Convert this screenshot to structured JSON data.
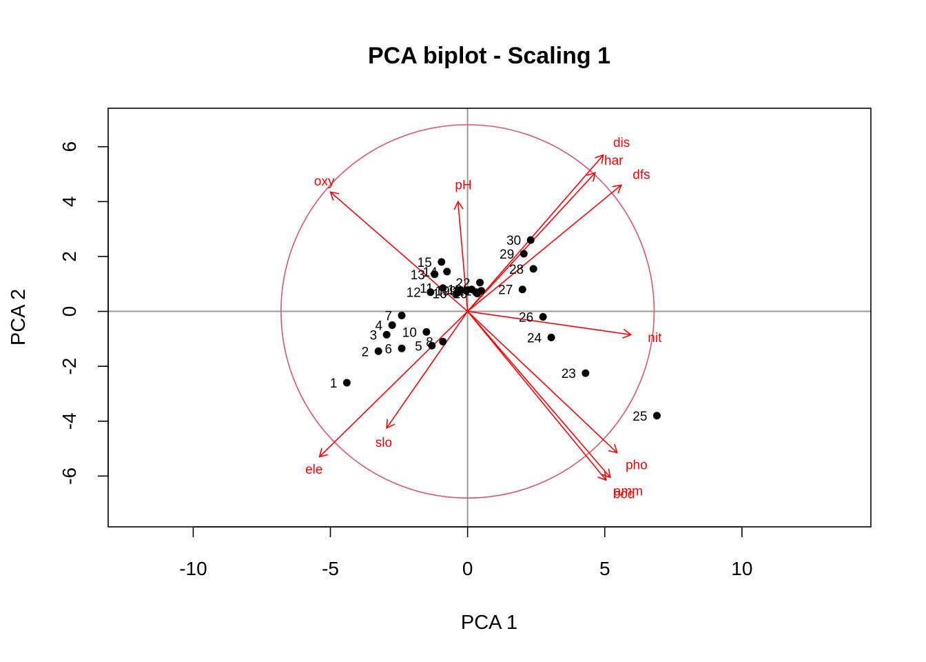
{
  "chart_data": {
    "type": "scatter",
    "title": "PCA biplot - Scaling 1",
    "xlabel": "PCA  1",
    "ylabel": "PCA  2",
    "xlim": [
      -13.1,
      14.7
    ],
    "ylim": [
      -7.85,
      7.4
    ],
    "xticks": [
      -10,
      -5,
      0,
      5,
      10
    ],
    "xtick_labels": [
      "-10",
      "-5",
      "0",
      "5",
      "10"
    ],
    "yticks": [
      -6,
      -4,
      -2,
      0,
      2,
      4,
      6
    ],
    "ytick_labels": [
      "-6",
      "-4",
      "-2",
      "0",
      "2",
      "4",
      "6"
    ],
    "grid": false,
    "reference_lines": [
      0,
      0
    ],
    "circle_radius": 6.8,
    "colors": {
      "points": "#000000",
      "arrows": "#ff0000",
      "circle": "#df536b",
      "axes": "#000000",
      "reference": "#999999"
    },
    "sites": [
      {
        "label": "1",
        "x": -4.4,
        "y": -2.6
      },
      {
        "label": "2",
        "x": -3.25,
        "y": -1.45
      },
      {
        "label": "3",
        "x": -2.95,
        "y": -0.85
      },
      {
        "label": "4",
        "x": -2.75,
        "y": -0.5
      },
      {
        "label": "5",
        "x": -1.3,
        "y": -1.25
      },
      {
        "label": "6",
        "x": -2.4,
        "y": -1.35
      },
      {
        "label": "7",
        "x": -2.4,
        "y": -0.15
      },
      {
        "label": "8",
        "x": -0.9,
        "y": -1.1
      },
      {
        "label": "9",
        "x": -0.05,
        "y": 0.75
      },
      {
        "label": "10",
        "x": -1.5,
        "y": -0.75
      },
      {
        "label": "11",
        "x": -0.9,
        "y": 0.85
      },
      {
        "label": "12",
        "x": -1.35,
        "y": 0.7
      },
      {
        "label": "13",
        "x": -1.2,
        "y": 1.35
      },
      {
        "label": "14",
        "x": -0.75,
        "y": 1.45
      },
      {
        "label": "15",
        "x": -0.95,
        "y": 1.8
      },
      {
        "label": "16",
        "x": -0.4,
        "y": 0.65
      },
      {
        "label": "17",
        "x": 0.3,
        "y": 0.7
      },
      {
        "label": "18",
        "x": 0.15,
        "y": 0.8
      },
      {
        "label": "19",
        "x": -0.3,
        "y": 0.75
      },
      {
        "label": "20",
        "x": 0.35,
        "y": 0.65
      },
      {
        "label": "21",
        "x": 0.5,
        "y": 0.75
      },
      {
        "label": "22",
        "x": 0.45,
        "y": 1.05
      },
      {
        "label": "23",
        "x": 4.3,
        "y": -2.25
      },
      {
        "label": "24",
        "x": 3.05,
        "y": -0.95
      },
      {
        "label": "25",
        "x": 6.9,
        "y": -3.8
      },
      {
        "label": "26",
        "x": 2.75,
        "y": -0.2
      },
      {
        "label": "27",
        "x": 2.0,
        "y": 0.8
      },
      {
        "label": "28",
        "x": 2.4,
        "y": 1.55
      },
      {
        "label": "29",
        "x": 2.05,
        "y": 2.1
      },
      {
        "label": "30",
        "x": 2.3,
        "y": 2.6
      }
    ],
    "variables": [
      {
        "label": "dis",
        "x": 4.95,
        "y": 5.7
      },
      {
        "label": "har",
        "x": 4.65,
        "y": 5.05
      },
      {
        "label": "dfs",
        "x": 5.6,
        "y": 4.6
      },
      {
        "label": "oxy",
        "x": -5.0,
        "y": 4.35
      },
      {
        "label": "pH",
        "x": -0.35,
        "y": 4.0
      },
      {
        "label": "nit",
        "x": 5.95,
        "y": -0.85
      },
      {
        "label": "pho",
        "x": 5.45,
        "y": -5.15
      },
      {
        "label": "amm",
        "x": 5.2,
        "y": -6.05
      },
      {
        "label": "bod",
        "x": 5.05,
        "y": -6.15
      },
      {
        "label": "slo",
        "x": -2.95,
        "y": -4.25
      },
      {
        "label": "ele",
        "x": -5.4,
        "y": -5.3
      }
    ]
  }
}
